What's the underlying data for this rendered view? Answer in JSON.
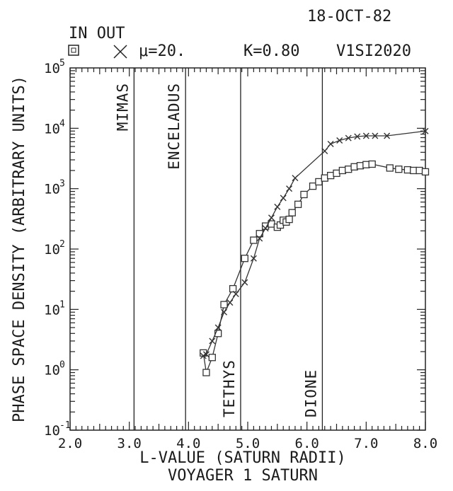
{
  "header": {
    "date": "18-OCT-82",
    "legend_title": "IN OUT",
    "in_marker": "square-marker",
    "out_marker": "x-marker",
    "mu": "μ=20.",
    "k_value": "K=0.80",
    "code": "V1SI2020"
  },
  "chart_data": {
    "type": "line",
    "title": "VOYAGER 1 SATURN",
    "xlabel": "L-VALUE (SATURN RADII)",
    "ylabel": "PHASE SPACE DENSITY (ARBITRARY UNITS)",
    "xlim": [
      2.0,
      8.0
    ],
    "ylim": [
      0.1,
      100000
    ],
    "yscale": "log",
    "grid": false,
    "x_ticks": [
      "2.0",
      "3.0",
      "4.0",
      "5.0",
      "6.0",
      "7.0",
      "8.0"
    ],
    "y_ticks": [
      {
        "base": "10",
        "exp": "-1",
        "value": 0.1
      },
      {
        "base": "10",
        "exp": "0",
        "value": 1
      },
      {
        "base": "10",
        "exp": "1",
        "value": 10
      },
      {
        "base": "10",
        "exp": "2",
        "value": 100
      },
      {
        "base": "10",
        "exp": "3",
        "value": 1000
      },
      {
        "base": "10",
        "exp": "4",
        "value": 10000
      },
      {
        "base": "10",
        "exp": "5",
        "value": 100000
      }
    ],
    "moons": [
      {
        "name": "MIMAS",
        "L": 3.08,
        "label_pos": "upper"
      },
      {
        "name": "ENCELADUS",
        "L": 3.95,
        "label_pos": "upper"
      },
      {
        "name": "TETHYS",
        "L": 4.88,
        "label_pos": "lower"
      },
      {
        "name": "DIONE",
        "L": 6.26,
        "label_pos": "lower"
      }
    ],
    "series": [
      {
        "name": "IN",
        "marker": "square",
        "x": [
          4.25,
          4.3,
          4.4,
          4.5,
          4.6,
          4.75,
          4.95,
          5.1,
          5.2,
          5.3,
          5.4,
          5.5,
          5.55,
          5.6,
          5.65,
          5.7,
          5.75,
          5.85,
          5.95,
          6.1,
          6.2,
          6.3,
          6.4,
          6.5,
          6.6,
          6.7,
          6.8,
          6.9,
          7.0,
          7.1,
          7.4,
          7.55,
          7.7,
          7.8,
          7.9,
          8.0
        ],
        "y": [
          1.9,
          0.9,
          1.6,
          4.0,
          12,
          22,
          70,
          140,
          180,
          240,
          260,
          230,
          250,
          300,
          280,
          310,
          400,
          550,
          800,
          1100,
          1300,
          1500,
          1650,
          1800,
          2000,
          2100,
          2300,
          2400,
          2500,
          2550,
          2200,
          2100,
          2050,
          2000,
          2000,
          1900
        ]
      },
      {
        "name": "OUT",
        "marker": "x",
        "x": [
          4.25,
          4.3,
          4.4,
          4.5,
          4.6,
          4.7,
          4.8,
          4.95,
          5.1,
          5.2,
          5.3,
          5.4,
          5.5,
          5.6,
          5.7,
          5.8,
          6.3,
          6.4,
          6.55,
          6.7,
          6.85,
          7.0,
          7.15,
          7.35,
          8.0
        ],
        "y": [
          1.7,
          1.8,
          3.0,
          5.0,
          9.0,
          13,
          18,
          28,
          70,
          150,
          220,
          330,
          500,
          700,
          1000,
          1500,
          4200,
          5500,
          6300,
          6900,
          7300,
          7500,
          7500,
          7500,
          9000
        ]
      }
    ]
  }
}
